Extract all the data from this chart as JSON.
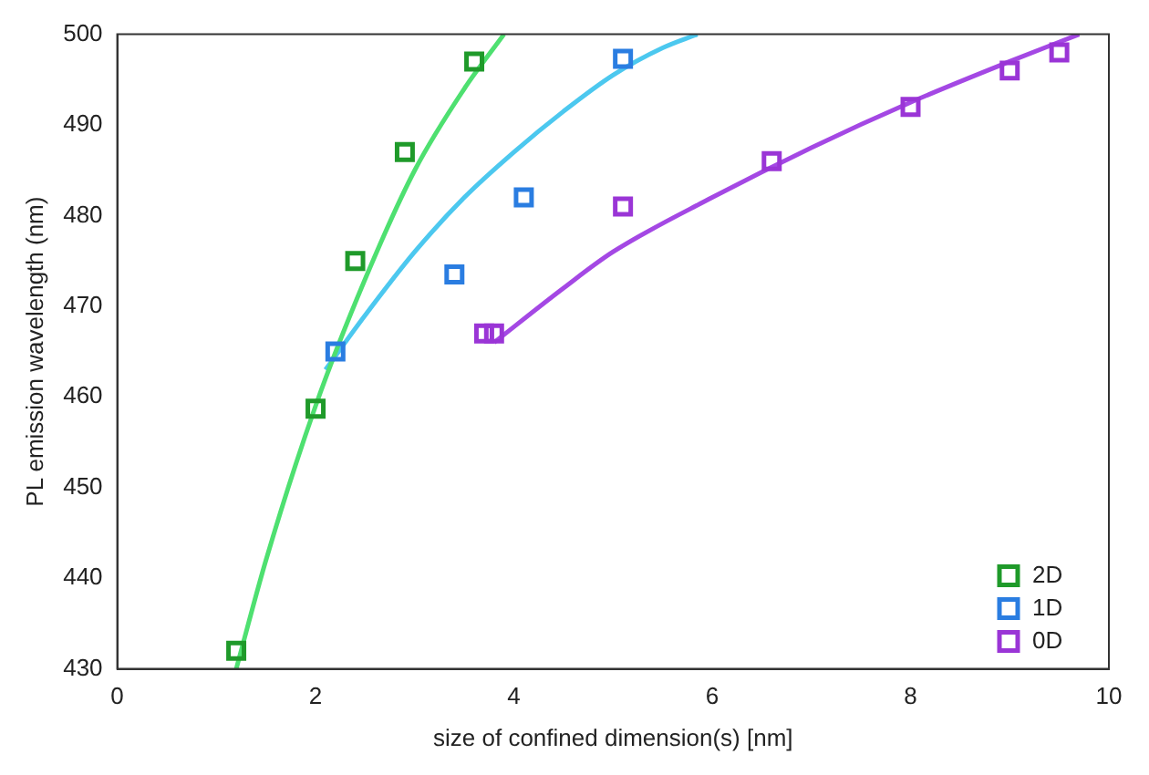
{
  "chart_data": {
    "type": "scatter",
    "xlabel": "size of confined dimension(s) [nm]",
    "ylabel": "PL emission wavelength (nm)",
    "xlim": [
      0,
      10
    ],
    "xticks": [
      0,
      2,
      4,
      6,
      8,
      10
    ],
    "ylim": [
      430,
      500
    ],
    "yticks": [
      430,
      440,
      450,
      460,
      470,
      480,
      490,
      500
    ],
    "grid": false,
    "legend": "bottom right",
    "series": [
      {
        "name": "2D",
        "marker": "square",
        "color": "#1f9a2a",
        "x": [
          1.2,
          2.0,
          2.4,
          2.9,
          3.6
        ],
        "values": [
          432,
          458.7,
          475,
          487,
          497
        ]
      },
      {
        "name": "1D",
        "marker": "square",
        "color": "#2a7de1",
        "x": [
          2.2,
          3.4,
          4.1,
          5.1
        ],
        "values": [
          465,
          473.5,
          482,
          497.3
        ]
      },
      {
        "name": "0D",
        "marker": "square",
        "color": "#9a35d6",
        "x": [
          3.7,
          3.8,
          5.1,
          6.6,
          8.0,
          9.0,
          9.5
        ],
        "values": [
          467,
          467,
          481,
          486,
          492,
          496,
          498
        ]
      },
      {
        "type": "line",
        "marker": "none",
        "color": "#4ee070",
        "x": [
          1.2,
          1.5,
          2.0,
          2.5,
          3.0,
          3.5,
          3.9
        ],
        "values": [
          430,
          442,
          459,
          473,
          485,
          494,
          500
        ]
      },
      {
        "type": "line",
        "marker": "none",
        "color": "#4cc8ef",
        "x": [
          2.1,
          2.5,
          3.0,
          3.5,
          4.0,
          4.5,
          5.0,
          5.5,
          5.85
        ],
        "values": [
          463,
          469,
          476,
          482,
          487,
          491.5,
          495.5,
          498.5,
          500
        ]
      },
      {
        "type": "line",
        "marker": "none",
        "color": "#a448e4",
        "x": [
          3.8,
          4.5,
          5.0,
          6.0,
          7.0,
          8.0,
          9.0,
          9.7
        ],
        "values": [
          466,
          472,
          476,
          482,
          487.5,
          492.5,
          497,
          500
        ]
      }
    ]
  }
}
